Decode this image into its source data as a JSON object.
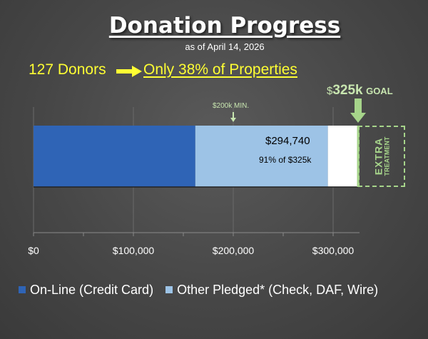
{
  "header": {
    "title": "Donation Progress",
    "subtitle": "as of April 14, 2026",
    "donors_text": "127 Donors",
    "properties_text": "Only 38% of Properties"
  },
  "annotations": {
    "goal_dollar": "$",
    "goal_amount": "325k",
    "goal_word": "GOAL",
    "min_label": "$200k MIN.",
    "bar_value": "$294,740",
    "bar_pct": "91% of $325k",
    "extra_word": "EXTRA",
    "treatment_word": "TREATMENT"
  },
  "colors": {
    "online": "#2f64b6",
    "other": "#9dc3e6",
    "remaining": "#ffffff",
    "accent_green": "#a6d48a",
    "text_yellow": "#ffff33"
  },
  "chart_data": {
    "type": "bar",
    "orientation": "horizontal",
    "stacked": true,
    "categories": [
      ""
    ],
    "series": [
      {
        "name": "On-Line (Credit Card)",
        "values": [
          162000
        ]
      },
      {
        "name": "Other Pledged* (Check, DAF, Wire)",
        "values": [
          132740
        ]
      },
      {
        "name": "",
        "values": [
          30260
        ]
      }
    ],
    "total": 294740,
    "goal": 325000,
    "minimum": 200000,
    "xlim": [
      0,
      325000
    ],
    "x_ticks": [
      0,
      100000,
      200000,
      300000
    ],
    "x_tick_labels": [
      "$0",
      "$100,000",
      "$200,000",
      "$300,000"
    ],
    "grid": true,
    "legend_position": "bottom"
  },
  "legend": {
    "items": [
      {
        "label": "On-Line (Credit Card)",
        "color": "#2f64b6"
      },
      {
        "label": "Other Pledged* (Check, DAF, Wire)",
        "color": "#9dc3e6"
      }
    ]
  }
}
